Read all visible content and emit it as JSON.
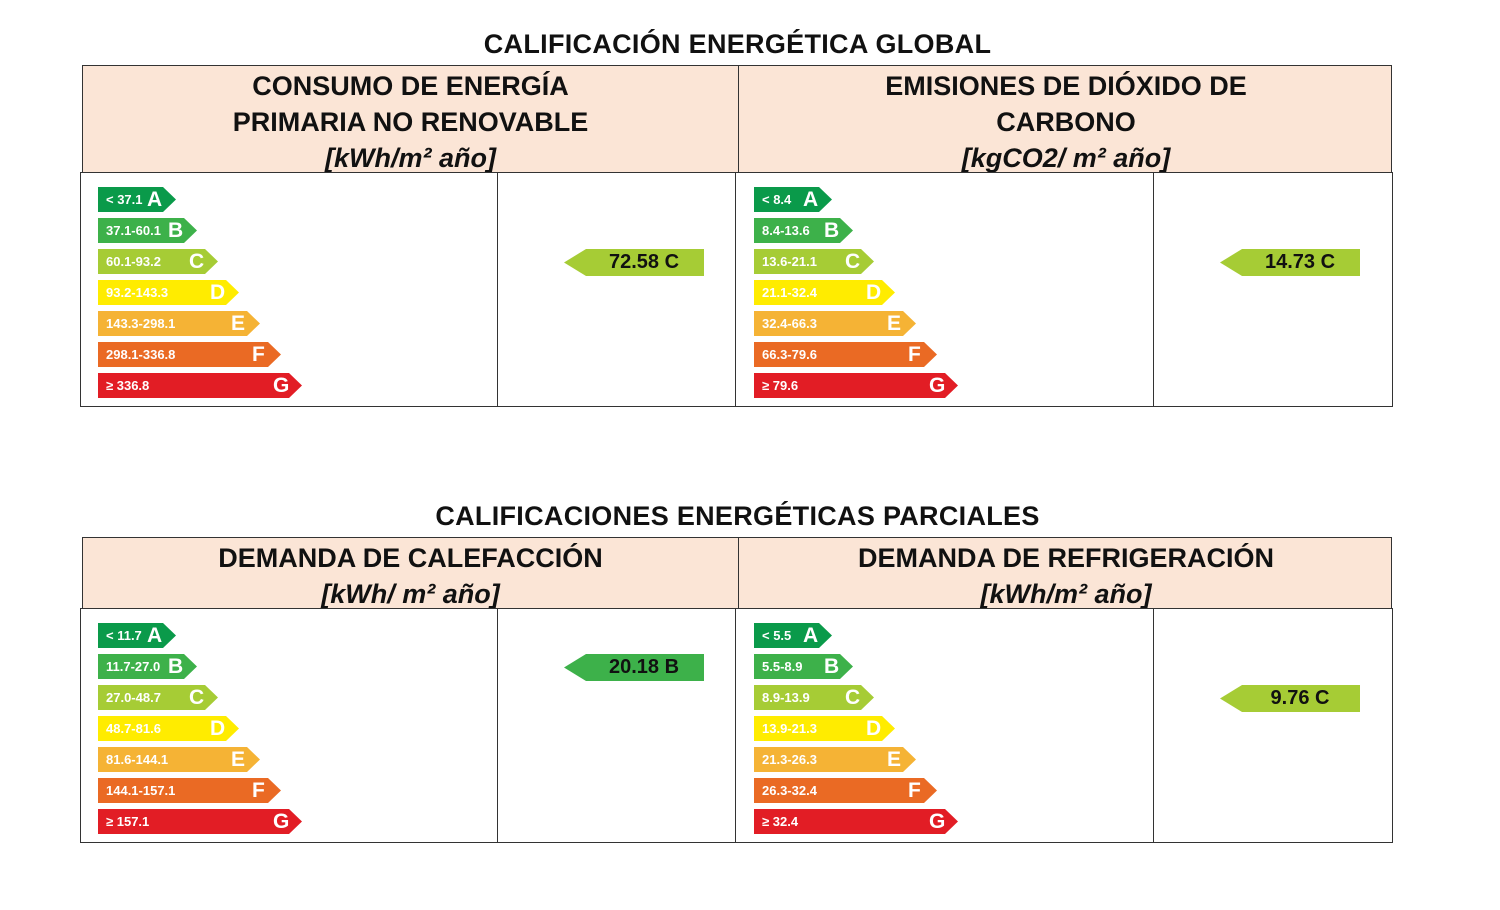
{
  "global": {
    "title": "CALIFICACIÓN ENERGÉTICA GLOBAL",
    "panels": [
      {
        "title_line1": "CONSUMO DE ENERGÍA",
        "title_line2": "PRIMARIA NO RENOVABLE",
        "unit": "[kWh/m² año]",
        "scale": [
          {
            "range": "< 37.1",
            "letter": "A"
          },
          {
            "range": "37.1-60.1",
            "letter": "B"
          },
          {
            "range": "60.1-93.2",
            "letter": "C"
          },
          {
            "range": "93.2-143.3",
            "letter": "D"
          },
          {
            "range": "143.3-298.1",
            "letter": "E"
          },
          {
            "range": "298.1-336.8",
            "letter": "F"
          },
          {
            "range": "≥ 336.8",
            "letter": "G"
          }
        ],
        "rating": {
          "value": "72.58",
          "letter": "C",
          "label": "72.58 C"
        }
      },
      {
        "title_line1": "EMISIONES DE DIÓXIDO DE",
        "title_line2": "CARBONO",
        "unit": "[kgCO2/ m² año]",
        "scale": [
          {
            "range": "< 8.4",
            "letter": "A"
          },
          {
            "range": "8.4-13.6",
            "letter": "B"
          },
          {
            "range": "13.6-21.1",
            "letter": "C"
          },
          {
            "range": "21.1-32.4",
            "letter": "D"
          },
          {
            "range": "32.4-66.3",
            "letter": "E"
          },
          {
            "range": "66.3-79.6",
            "letter": "F"
          },
          {
            "range": "≥ 79.6",
            "letter": "G"
          }
        ],
        "rating": {
          "value": "14.73",
          "letter": "C",
          "label": "14.73 C"
        }
      }
    ]
  },
  "partial": {
    "title": "CALIFICACIONES ENERGÉTICAS PARCIALES",
    "panels": [
      {
        "title_line1": "DEMANDA DE CALEFACCIÓN",
        "unit": "[kWh/ m² año]",
        "scale": [
          {
            "range": "< 11.7",
            "letter": "A"
          },
          {
            "range": "11.7-27.0",
            "letter": "B"
          },
          {
            "range": "27.0-48.7",
            "letter": "C"
          },
          {
            "range": "48.7-81.6",
            "letter": "D"
          },
          {
            "range": "81.6-144.1",
            "letter": "E"
          },
          {
            "range": "144.1-157.1",
            "letter": "F"
          },
          {
            "range": "≥ 157.1",
            "letter": "G"
          }
        ],
        "rating": {
          "value": "20.18",
          "letter": "B",
          "label": "20.18 B"
        }
      },
      {
        "title_line1": "DEMANDA DE REFRIGERACIÓN",
        "unit": "[kWh/m² año]",
        "scale": [
          {
            "range": "< 5.5",
            "letter": "A"
          },
          {
            "range": "5.5-8.9",
            "letter": "B"
          },
          {
            "range": "8.9-13.9",
            "letter": "C"
          },
          {
            "range": "13.9-21.3",
            "letter": "D"
          },
          {
            "range": "21.3-26.3",
            "letter": "E"
          },
          {
            "range": "26.3-32.4",
            "letter": "F"
          },
          {
            "range": "≥ 32.4",
            "letter": "G"
          }
        ],
        "rating": {
          "value": "9.76",
          "letter": "C",
          "label": "9.76 C"
        }
      }
    ]
  },
  "colors": {
    "A": "#0a9a4a",
    "B": "#3db14a",
    "C": "#a6cc35",
    "D": "#ffec00",
    "E": "#f5b335",
    "F": "#ea6a24",
    "G": "#e21d25",
    "header_bg": "#fbe5d6"
  }
}
